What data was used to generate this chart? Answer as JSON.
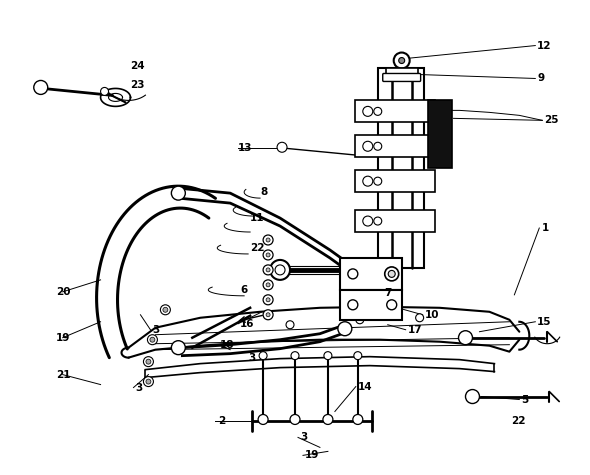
{
  "bg_color": "#ffffff",
  "line_color": "#000000",
  "figsize": [
    5.9,
    4.75
  ],
  "dpi": 100,
  "labels": [
    [
      "1",
      543,
      228
    ],
    [
      "2",
      218,
      422
    ],
    [
      "3",
      152,
      330
    ],
    [
      "3",
      135,
      388
    ],
    [
      "3",
      248,
      358
    ],
    [
      "3",
      300,
      438
    ],
    [
      "5",
      522,
      400
    ],
    [
      "6",
      240,
      290
    ],
    [
      "7",
      385,
      293
    ],
    [
      "8",
      260,
      192
    ],
    [
      "9",
      538,
      78
    ],
    [
      "10",
      425,
      315
    ],
    [
      "11",
      250,
      218
    ],
    [
      "12",
      538,
      45
    ],
    [
      "13",
      238,
      148
    ],
    [
      "14",
      358,
      387
    ],
    [
      "15",
      538,
      322
    ],
    [
      "16",
      240,
      324
    ],
    [
      "17",
      408,
      330
    ],
    [
      "18",
      220,
      345
    ],
    [
      "19",
      55,
      338
    ],
    [
      "19",
      305,
      456
    ],
    [
      "20",
      55,
      292
    ],
    [
      "21",
      55,
      375
    ],
    [
      "22",
      250,
      248
    ],
    [
      "22",
      512,
      422
    ],
    [
      "23",
      130,
      85
    ],
    [
      "24",
      130,
      65
    ],
    [
      "25",
      545,
      120
    ]
  ]
}
